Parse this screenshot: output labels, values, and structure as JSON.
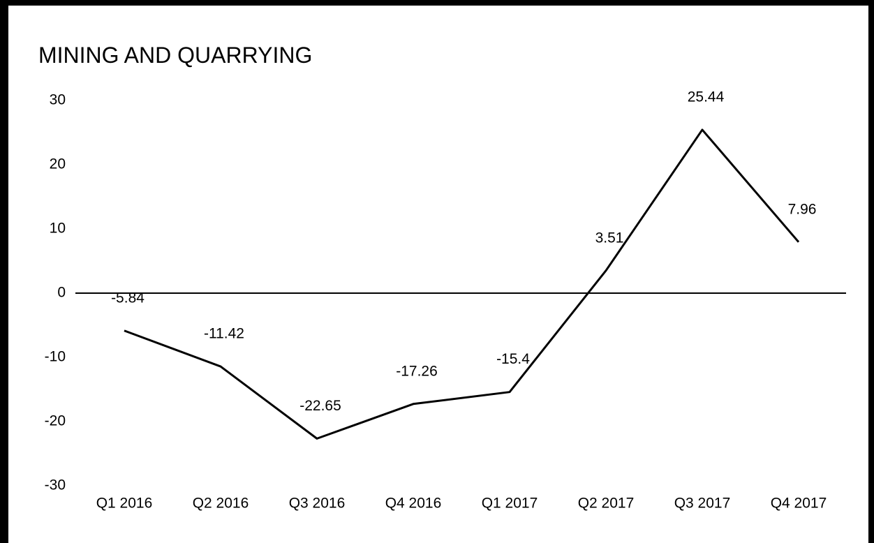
{
  "chart_data": {
    "type": "line",
    "title": "MINING AND QUARRYING",
    "categories": [
      "Q1 2016",
      "Q2 2016",
      "Q3 2016",
      "Q4 2016",
      "Q1 2017",
      "Q2 2017",
      "Q3 2017",
      "Q4 2017"
    ],
    "series": [
      {
        "color": "#000000",
        "values": [
          -5.84,
          -11.42,
          -22.65,
          -17.26,
          -15.4,
          3.51,
          25.44,
          7.96
        ],
        "value_labels": [
          "-5.84",
          "-11.42",
          "-22.65",
          "-17.26",
          "-15.4",
          "3.51",
          "25.44",
          "7.96"
        ]
      }
    ],
    "ylim": [
      -30,
      30
    ],
    "yticks": [
      -30,
      -20,
      -10,
      0,
      10,
      20,
      30
    ],
    "grid": false
  }
}
